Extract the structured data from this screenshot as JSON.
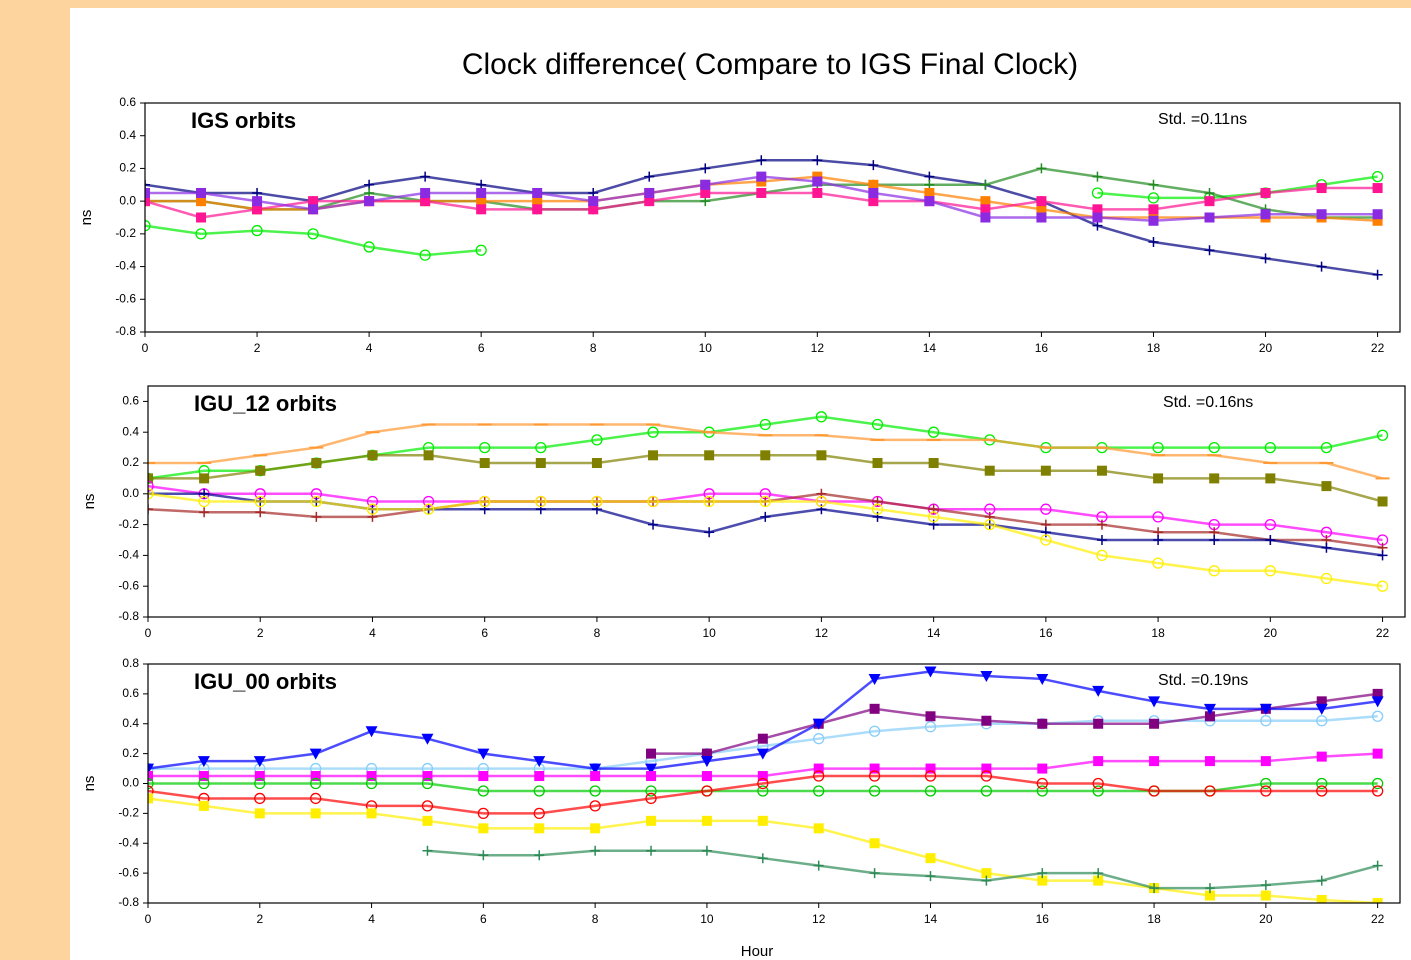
{
  "title": "Clock difference( Compare to IGS Final Clock)",
  "x_label": "Hour",
  "chart_data": [
    {
      "type": "line",
      "annotation": "IGS orbits",
      "std_label": "Std. =0.11ns",
      "y_label": "ns",
      "x": [
        0,
        1,
        2,
        3,
        4,
        5,
        6,
        7,
        8,
        9,
        10,
        11,
        12,
        13,
        14,
        15,
        16,
        17,
        18,
        19,
        20,
        21,
        22
      ],
      "xlim": [
        0,
        22.4
      ],
      "xticks": [
        0,
        2,
        4,
        6,
        8,
        10,
        12,
        14,
        16,
        18,
        20,
        22
      ],
      "ylim": [
        -0.8,
        0.6
      ],
      "yticks": [
        0.6,
        0.4,
        0.2,
        {
          "value": 0,
          "label": "0.0"
        },
        -0.2,
        -0.4,
        -0.6,
        -0.8
      ],
      "series": [
        {
          "color": "#00ee00",
          "marker": "circle",
          "values": [
            -0.15,
            -0.2,
            -0.18,
            -0.2,
            -0.28,
            -0.33,
            -0.3,
            null,
            null,
            null,
            null,
            null,
            null,
            null,
            null,
            null,
            null,
            0.05,
            0.02,
            0.02,
            0.05,
            0.1,
            0.15
          ]
        },
        {
          "color": "#000080",
          "marker": "plus",
          "values": [
            0.1,
            0.05,
            0.05,
            0.0,
            0.1,
            0.15,
            0.1,
            0.05,
            0.05,
            0.15,
            0.2,
            0.25,
            0.25,
            0.22,
            0.15,
            0.1,
            0.0,
            -0.15,
            -0.25,
            -0.3,
            -0.35,
            -0.4,
            -0.45
          ]
        },
        {
          "color": "#228b22",
          "marker": "plus",
          "values": [
            0.0,
            0.0,
            -0.05,
            -0.05,
            0.05,
            0.0,
            0.0,
            -0.05,
            -0.05,
            0.0,
            0.0,
            0.05,
            0.1,
            0.1,
            0.1,
            0.1,
            0.2,
            0.15,
            0.1,
            0.05,
            -0.05,
            -0.1,
            -0.1
          ]
        },
        {
          "color": "#ff8000",
          "marker": "square",
          "values": [
            0.0,
            0.0,
            -0.05,
            -0.05,
            0.0,
            0.0,
            0.0,
            0.0,
            0.0,
            0.05,
            0.1,
            0.12,
            0.15,
            0.1,
            0.05,
            0.0,
            -0.05,
            -0.1,
            -0.1,
            -0.1,
            -0.1,
            -0.1,
            -0.12
          ]
        },
        {
          "color": "#ff1493",
          "marker": "square",
          "values": [
            0.0,
            -0.1,
            -0.05,
            0.0,
            0.0,
            0.0,
            -0.05,
            -0.05,
            -0.05,
            0.0,
            0.05,
            0.05,
            0.05,
            0.0,
            0.0,
            -0.05,
            0.0,
            -0.05,
            -0.05,
            0.0,
            0.05,
            0.08,
            0.08
          ]
        },
        {
          "color": "#8a2be2",
          "marker": "square",
          "values": [
            0.05,
            0.05,
            0.0,
            -0.05,
            0.0,
            0.05,
            0.05,
            0.05,
            0.0,
            0.05,
            0.1,
            0.15,
            0.12,
            0.05,
            0.0,
            -0.1,
            -0.1,
            -0.1,
            -0.12,
            -0.1,
            -0.08,
            -0.08,
            -0.08
          ]
        }
      ]
    },
    {
      "type": "line",
      "annotation": "IGU_12 orbits",
      "std_label": "Std. =0.16ns",
      "y_label": "ns",
      "x": [
        0,
        1,
        2,
        3,
        4,
        5,
        6,
        7,
        8,
        9,
        10,
        11,
        12,
        13,
        14,
        15,
        16,
        17,
        18,
        19,
        20,
        21,
        22
      ],
      "xlim": [
        0,
        22.4
      ],
      "xticks": [
        0,
        2,
        4,
        6,
        8,
        10,
        12,
        14,
        16,
        18,
        20,
        22
      ],
      "ylim": [
        -0.8,
        0.7
      ],
      "yticks": [
        0.6,
        0.4,
        0.2,
        {
          "value": 0,
          "label": "0.0"
        },
        -0.2,
        -0.4,
        -0.6,
        -0.8
      ],
      "series": [
        {
          "color": "#00ee00",
          "marker": "circle",
          "values": [
            0.1,
            0.15,
            0.15,
            0.2,
            0.25,
            0.3,
            0.3,
            0.3,
            0.35,
            0.4,
            0.4,
            0.45,
            0.5,
            0.45,
            0.4,
            0.35,
            0.3,
            0.3,
            0.3,
            0.3,
            0.3,
            0.3,
            0.38
          ]
        },
        {
          "color": "#ff9933",
          "marker": "dash",
          "values": [
            0.2,
            0.2,
            0.25,
            0.3,
            0.4,
            0.45,
            0.45,
            0.45,
            0.45,
            0.45,
            0.4,
            0.38,
            0.38,
            0.35,
            0.35,
            0.35,
            0.3,
            0.3,
            0.25,
            0.25,
            0.2,
            0.2,
            0.1
          ]
        },
        {
          "color": "#808000",
          "marker": "square",
          "values": [
            0.1,
            0.1,
            0.15,
            0.2,
            0.25,
            0.25,
            0.2,
            0.2,
            0.2,
            0.25,
            0.25,
            0.25,
            0.25,
            0.2,
            0.2,
            0.15,
            0.15,
            0.15,
            0.1,
            0.1,
            0.1,
            0.05,
            -0.05
          ]
        },
        {
          "color": "#ff00ff",
          "marker": "circle",
          "values": [
            0.05,
            0.0,
            0.0,
            0.0,
            -0.05,
            -0.05,
            -0.05,
            -0.05,
            -0.05,
            -0.05,
            0.0,
            0.0,
            -0.05,
            -0.05,
            -0.1,
            -0.1,
            -0.1,
            -0.15,
            -0.15,
            -0.2,
            -0.2,
            -0.25,
            -0.3
          ]
        },
        {
          "color": "#a52a2a",
          "marker": "plus",
          "values": [
            -0.1,
            -0.12,
            -0.12,
            -0.15,
            -0.15,
            -0.1,
            -0.05,
            -0.05,
            -0.05,
            -0.05,
            -0.05,
            -0.05,
            0.0,
            -0.05,
            -0.1,
            -0.15,
            -0.2,
            -0.2,
            -0.25,
            -0.25,
            -0.3,
            -0.3,
            -0.35
          ]
        },
        {
          "color": "#00008b",
          "marker": "plus",
          "values": [
            0.0,
            0.0,
            -0.05,
            -0.05,
            -0.1,
            -0.1,
            -0.1,
            -0.1,
            -0.1,
            -0.2,
            -0.25,
            -0.15,
            -0.1,
            -0.15,
            -0.2,
            -0.2,
            -0.25,
            -0.3,
            -0.3,
            -0.3,
            -0.3,
            -0.35,
            -0.4
          ]
        },
        {
          "color": "#ffee00",
          "marker": "circle",
          "values": [
            0.0,
            -0.05,
            -0.05,
            -0.05,
            -0.1,
            -0.1,
            -0.05,
            -0.05,
            -0.05,
            -0.05,
            -0.05,
            -0.05,
            -0.05,
            -0.1,
            -0.15,
            -0.2,
            -0.3,
            -0.4,
            -0.45,
            -0.5,
            -0.5,
            -0.55,
            -0.6
          ]
        }
      ]
    },
    {
      "type": "line",
      "annotation": "IGU_00 orbits",
      "std_label": "Std. =0.19ns",
      "y_label": "ns",
      "x": [
        0,
        1,
        2,
        3,
        4,
        5,
        6,
        7,
        8,
        9,
        10,
        11,
        12,
        13,
        14,
        15,
        16,
        17,
        18,
        19,
        20,
        21,
        22
      ],
      "xlim": [
        0,
        22.4
      ],
      "xticks": [
        0,
        2,
        4,
        6,
        8,
        10,
        12,
        14,
        16,
        18,
        20,
        22
      ],
      "ylim": [
        -0.8,
        0.8
      ],
      "yticks": [
        0.8,
        0.6,
        0.4,
        0.2,
        {
          "value": 0,
          "label": "0.0"
        },
        -0.2,
        -0.4,
        -0.6,
        -0.8
      ],
      "series": [
        {
          "color": "#87cefa",
          "marker": "circle",
          "values": [
            0.1,
            0.1,
            0.1,
            0.1,
            0.1,
            0.1,
            0.1,
            0.1,
            0.1,
            0.15,
            0.2,
            0.25,
            0.3,
            0.35,
            0.38,
            0.4,
            0.4,
            0.42,
            0.42,
            0.42,
            0.42,
            0.42,
            0.45
          ]
        },
        {
          "color": "#800080",
          "marker": "square",
          "values": [
            null,
            null,
            null,
            null,
            null,
            null,
            null,
            null,
            null,
            0.2,
            0.2,
            0.3,
            0.4,
            0.5,
            0.45,
            0.42,
            0.4,
            0.4,
            0.4,
            0.45,
            0.5,
            0.55,
            0.6
          ]
        },
        {
          "color": "#0000ff",
          "marker": "triangle",
          "values": [
            0.1,
            0.15,
            0.15,
            0.2,
            0.35,
            0.3,
            0.2,
            0.15,
            0.1,
            0.1,
            0.15,
            0.2,
            0.4,
            0.7,
            0.75,
            0.72,
            0.7,
            0.62,
            0.55,
            0.5,
            0.5,
            0.5,
            0.55
          ]
        },
        {
          "color": "#ff00ff",
          "marker": "square",
          "values": [
            0.05,
            0.05,
            0.05,
            0.05,
            0.05,
            0.05,
            0.05,
            0.05,
            0.05,
            0.05,
            0.05,
            0.05,
            0.1,
            0.1,
            0.1,
            0.1,
            0.1,
            0.15,
            0.15,
            0.15,
            0.15,
            0.18,
            0.2
          ]
        },
        {
          "color": "#00cc00",
          "marker": "circle",
          "values": [
            0.0,
            0.0,
            0.0,
            0.0,
            0.0,
            0.0,
            -0.05,
            -0.05,
            -0.05,
            -0.05,
            -0.05,
            -0.05,
            -0.05,
            -0.05,
            -0.05,
            -0.05,
            -0.05,
            -0.05,
            -0.05,
            -0.05,
            0.0,
            0.0,
            0.0
          ]
        },
        {
          "color": "#ff0000",
          "marker": "circle",
          "values": [
            -0.05,
            -0.1,
            -0.1,
            -0.1,
            -0.15,
            -0.15,
            -0.2,
            -0.2,
            -0.15,
            -0.1,
            -0.05,
            0.0,
            0.05,
            0.05,
            0.05,
            0.05,
            0.0,
            0.0,
            -0.05,
            -0.05,
            -0.05,
            -0.05,
            -0.05
          ]
        },
        {
          "color": "#ffee00",
          "marker": "square",
          "values": [
            -0.1,
            -0.15,
            -0.2,
            -0.2,
            -0.2,
            -0.25,
            -0.3,
            -0.3,
            -0.3,
            -0.25,
            -0.25,
            -0.25,
            -0.3,
            -0.4,
            -0.5,
            -0.6,
            -0.65,
            -0.65,
            -0.7,
            -0.75,
            -0.75,
            -0.78,
            -0.8
          ]
        },
        {
          "color": "#2e8b57",
          "marker": "plus",
          "values": [
            null,
            null,
            null,
            null,
            null,
            -0.45,
            -0.48,
            -0.48,
            -0.45,
            -0.45,
            -0.45,
            -0.5,
            -0.55,
            -0.6,
            -0.62,
            -0.65,
            -0.6,
            -0.6,
            -0.7,
            -0.7,
            -0.68,
            -0.65,
            -0.55
          ]
        }
      ]
    }
  ]
}
